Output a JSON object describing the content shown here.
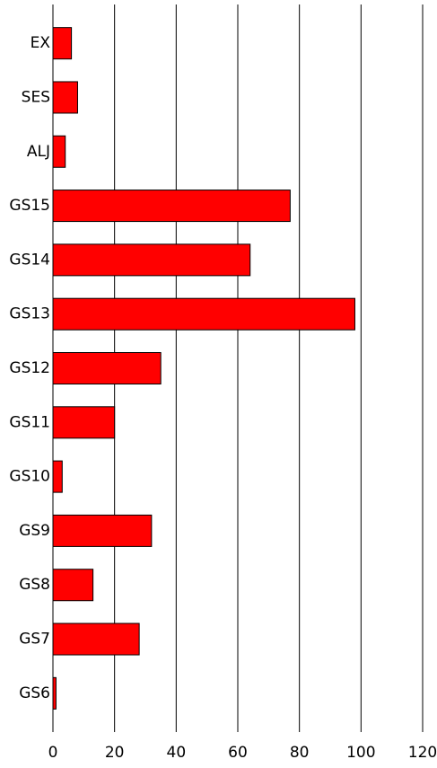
{
  "chart_data": {
    "type": "barh",
    "categories": [
      "EX",
      "SES",
      "ALJ",
      "GS15",
      "GS14",
      "GS13",
      "GS12",
      "GS11",
      "GS10",
      "GS9",
      "GS8",
      "GS7",
      "GS6"
    ],
    "values": [
      6,
      8,
      4,
      77,
      64,
      98,
      35,
      20,
      3,
      32,
      13,
      28,
      1
    ],
    "color": "#ff0000",
    "xlim": [
      0,
      120
    ],
    "xticks": [
      0,
      20,
      40,
      60,
      80,
      100,
      120
    ],
    "grid": true
  }
}
